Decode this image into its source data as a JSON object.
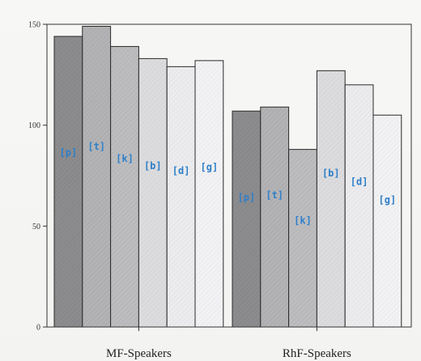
{
  "chart_data": {
    "type": "bar",
    "categories": [
      "MF-Speakers",
      "RhF-Speakers"
    ],
    "series": [
      {
        "name": "[p]",
        "values": [
          144,
          107
        ]
      },
      {
        "name": "[t]",
        "values": [
          149,
          109
        ]
      },
      {
        "name": "[k]",
        "values": [
          139,
          88
        ]
      },
      {
        "name": "[b]",
        "values": [
          133,
          127
        ]
      },
      {
        "name": "[d]",
        "values": [
          129,
          120
        ]
      },
      {
        "name": "[g]",
        "values": [
          132,
          105
        ]
      }
    ],
    "title": "",
    "xlabel": "",
    "ylabel": "",
    "ylim": [
      0,
      150
    ],
    "yticks": [
      0,
      50,
      100,
      150
    ],
    "ytick_labels": [
      "0",
      "50",
      "100",
      "150"
    ],
    "grid": false,
    "legend": "none (labels inside bars)",
    "colors": {
      "bar_fills": [
        "#8c8c8e",
        "#b3b3b5",
        "#bdbdbf",
        "#dcdcde",
        "#ececee",
        "#f2f2f4"
      ],
      "bar_stroke": "#2a2a2a",
      "label_color": "#2f7fc9",
      "axis": "#333333"
    }
  }
}
